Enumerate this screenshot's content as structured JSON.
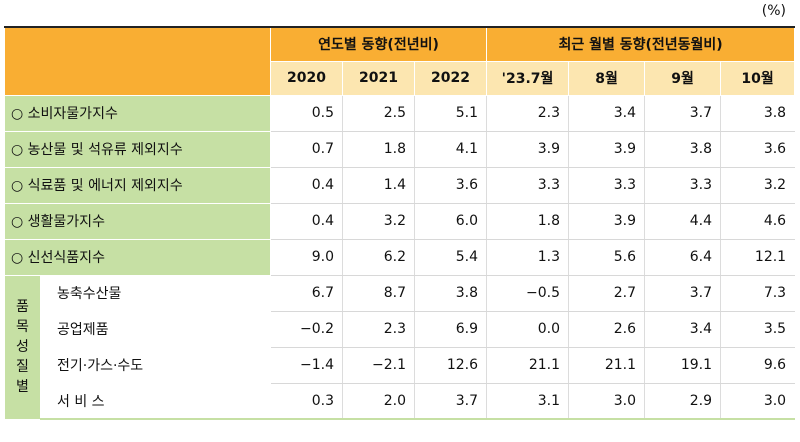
{
  "unit": "(%)",
  "header": {
    "group_annual": "연도별 동향(전년비)",
    "group_monthly": "최근 월별 동향(전년동월비)",
    "years": [
      "2020",
      "2021",
      "2022"
    ],
    "months": [
      "'23.7월",
      "8월",
      "9월",
      "10월"
    ]
  },
  "side_label": [
    "품",
    "목",
    "성",
    "질",
    "별"
  ],
  "rows": [
    {
      "label": "○ 소비자물가지수",
      "values": [
        "0.5",
        "2.5",
        "5.1",
        "2.3",
        "3.4",
        "3.7",
        "3.8"
      ]
    },
    {
      "label": "○ 농산물 및 석유류 제외지수",
      "values": [
        "0.7",
        "1.8",
        "4.1",
        "3.9",
        "3.9",
        "3.8",
        "3.6"
      ]
    },
    {
      "label": "○ 식료품 및 에너지 제외지수",
      "values": [
        "0.4",
        "1.4",
        "3.6",
        "3.3",
        "3.3",
        "3.3",
        "3.2"
      ]
    },
    {
      "label": "○ 생활물가지수",
      "values": [
        "0.4",
        "3.2",
        "6.0",
        "1.8",
        "3.9",
        "4.4",
        "4.6"
      ]
    },
    {
      "label": "○ 신선식품지수",
      "values": [
        "9.0",
        "6.2",
        "5.4",
        "1.3",
        "5.6",
        "6.4",
        "12.1"
      ]
    }
  ],
  "sub_rows": [
    {
      "label": "농축수산물",
      "values": [
        "6.7",
        "8.7",
        "3.8",
        "−0.5",
        "2.7",
        "3.7",
        "7.3"
      ]
    },
    {
      "label": "공업제품",
      "values": [
        "−0.2",
        "2.3",
        "6.9",
        "0.0",
        "2.6",
        "3.4",
        "3.5"
      ]
    },
    {
      "label": "전기·가스·수도",
      "values": [
        "−1.4",
        "−2.1",
        "12.6",
        "21.1",
        "21.1",
        "19.1",
        "9.6"
      ]
    },
    {
      "label": "서 비 스",
      "values": [
        "0.3",
        "2.0",
        "3.7",
        "3.1",
        "3.0",
        "2.9",
        "3.0"
      ]
    }
  ]
}
